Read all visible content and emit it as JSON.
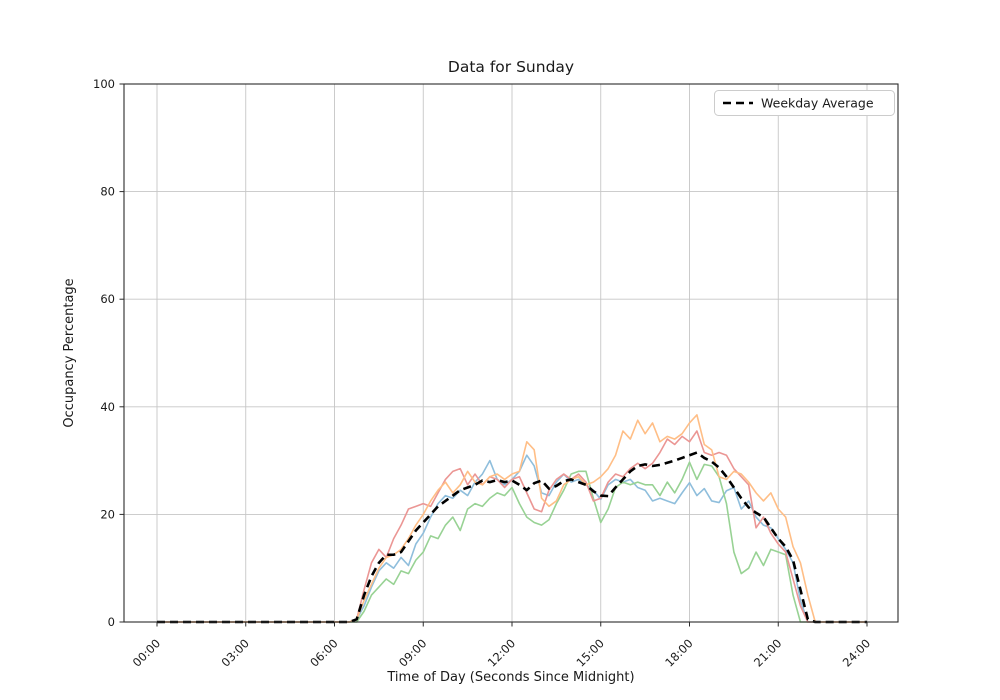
{
  "figure": {
    "background": "#ffffff"
  },
  "chart_data": {
    "type": "line",
    "title": "Data for Sunday",
    "xlabel": "Time of Day (Seconds Since Midnight)",
    "ylabel": "Occupancy Percentage",
    "x_tick_labels": [
      "00:00",
      "03:00",
      "06:00",
      "09:00",
      "12:00",
      "15:00",
      "18:00",
      "21:00",
      "24:00"
    ],
    "y_tick_labels": [
      "0",
      "20",
      "40",
      "60",
      "80",
      "100"
    ],
    "ylim": [
      0,
      100
    ],
    "x_hours_range": [
      0,
      24
    ],
    "interval_minutes": 15,
    "grid": true,
    "grid_color": "#c6c6c6",
    "spine_color": "#2b2b2b",
    "legend": {
      "position": "upper right",
      "entries": [
        {
          "label": "Weekday Average",
          "style": "dashed",
          "color": "#000000"
        }
      ]
    },
    "series": [
      {
        "name": "series-blue",
        "color": "#8fbedc",
        "style": "solid",
        "width": 1.6,
        "values": [
          0,
          0,
          0,
          0,
          0,
          0,
          0,
          0,
          0,
          0,
          0,
          0,
          0,
          0,
          0,
          0,
          0,
          0,
          0,
          0,
          0,
          0,
          0,
          0,
          0,
          0,
          0,
          0.5,
          3,
          6.5,
          9.5,
          11,
          10,
          12,
          10.5,
          14.5,
          16.5,
          19.5,
          22,
          23.5,
          23,
          24.5,
          23.5,
          26,
          27.5,
          30,
          26.5,
          25.5,
          26.5,
          28,
          31,
          29,
          24,
          23.5,
          26,
          27.5,
          26,
          26.5,
          25.5,
          24.5,
          22.8,
          25.5,
          26.5,
          26,
          26.5,
          25,
          24.5,
          22.5,
          23,
          22.5,
          22,
          24,
          25.9,
          23.5,
          24.8,
          22.5,
          22.2,
          24.4,
          25,
          21,
          22.5,
          19.5,
          18,
          17.5,
          15.5,
          13.5,
          11,
          4,
          0,
          0,
          0,
          0,
          0,
          0,
          0,
          0,
          0
        ]
      },
      {
        "name": "series-green",
        "color": "#98d294",
        "style": "solid",
        "width": 1.6,
        "values": [
          0,
          0,
          0,
          0,
          0,
          0,
          0,
          0,
          0,
          0,
          0,
          0,
          0,
          0,
          0,
          0,
          0,
          0,
          0,
          0,
          0,
          0,
          0,
          0,
          0,
          0,
          0,
          0,
          2,
          5,
          6.5,
          8,
          7,
          9.5,
          9,
          11.5,
          13,
          16,
          15.5,
          18,
          19.5,
          17,
          21,
          22,
          21.5,
          23,
          24,
          23.5,
          25,
          22,
          19.5,
          18.5,
          18,
          19,
          22,
          24.5,
          27.5,
          28,
          28,
          23,
          18.5,
          21,
          25,
          26,
          25.5,
          26,
          25.5,
          25.5,
          23.5,
          26,
          24,
          26.5,
          29.7,
          26.5,
          29.3,
          29,
          27,
          22,
          13,
          9,
          10,
          13,
          10.5,
          13.5,
          13,
          12.5,
          5,
          0,
          0,
          0,
          0,
          0,
          0,
          0,
          0,
          0,
          0
        ]
      },
      {
        "name": "series-red",
        "color": "#eb9694",
        "style": "solid",
        "width": 1.6,
        "values": [
          0,
          0,
          0,
          0,
          0,
          0,
          0,
          0,
          0,
          0,
          0,
          0,
          0,
          0,
          0,
          0,
          0,
          0,
          0,
          0,
          0,
          0,
          0,
          0,
          0,
          0,
          0,
          0.5,
          6,
          11,
          13.5,
          12,
          15.5,
          18,
          21,
          21.5,
          22,
          21.5,
          24,
          26.5,
          28,
          28.5,
          25.5,
          27.5,
          25.5,
          27,
          26.5,
          25,
          26.5,
          27,
          24,
          21,
          20.5,
          24.5,
          26.5,
          27.5,
          26.5,
          27.5,
          26,
          22.5,
          23,
          26,
          27.5,
          27,
          28.5,
          29.5,
          28.5,
          29.5,
          31.5,
          34,
          33,
          34.5,
          33.5,
          35.5,
          31.5,
          31,
          31.5,
          31,
          28.5,
          27,
          25.5,
          17.5,
          19.5,
          16.5,
          14.5,
          13,
          8,
          3,
          0,
          0,
          0,
          0,
          0,
          0,
          0,
          0,
          0
        ]
      },
      {
        "name": "series-orange",
        "color": "#ffbe86",
        "style": "solid",
        "width": 1.6,
        "values": [
          0,
          0,
          0,
          0,
          0,
          0,
          0,
          0,
          0,
          0,
          0,
          0,
          0,
          0,
          0,
          0,
          0,
          0,
          0,
          0,
          0,
          0,
          0,
          0,
          0,
          0,
          0,
          0.5,
          4,
          7,
          10,
          12,
          12.5,
          13.5,
          15.5,
          18,
          20,
          22.5,
          24.5,
          26,
          24,
          25.5,
          28,
          26,
          25.5,
          27,
          27.5,
          26.5,
          27.5,
          28,
          33.5,
          32,
          23,
          21.5,
          22.5,
          25.5,
          26.5,
          27,
          25.5,
          26,
          27,
          28.5,
          31,
          35.5,
          34,
          37.5,
          35,
          37,
          33.5,
          34.5,
          34,
          35,
          37,
          38.5,
          33,
          32,
          27,
          26.5,
          28,
          27.5,
          26,
          24,
          22.5,
          24,
          21,
          19.5,
          14,
          11,
          5,
          0,
          0,
          0,
          0,
          0,
          0,
          0,
          0
        ]
      },
      {
        "name": "weekday-average",
        "label": "Weekday Average",
        "color": "#000000",
        "style": "dashed",
        "width": 2.6,
        "values": [
          0,
          0,
          0,
          0,
          0,
          0,
          0,
          0,
          0,
          0,
          0,
          0,
          0,
          0,
          0,
          0,
          0,
          0,
          0,
          0,
          0,
          0,
          0,
          0,
          0,
          0,
          0,
          0.5,
          5,
          8.5,
          11,
          12.5,
          12.5,
          13,
          15,
          17,
          18.5,
          20,
          21.5,
          22.5,
          23.5,
          24.5,
          25,
          25.5,
          26.3,
          26,
          26.4,
          26,
          26.3,
          25.5,
          24.5,
          25.8,
          26.3,
          24.8,
          25.3,
          26.2,
          26.5,
          26,
          25.5,
          24.3,
          23.5,
          23.4,
          25,
          26.5,
          28,
          29,
          29.3,
          29,
          29.2,
          29.6,
          30,
          30.5,
          31,
          31.5,
          30.5,
          29.8,
          28.7,
          27,
          25,
          23,
          21.3,
          20.3,
          19.5,
          17.5,
          15.5,
          14,
          11.5,
          6,
          0.5,
          0,
          0,
          0,
          0,
          0,
          0,
          0,
          0
        ]
      }
    ]
  }
}
